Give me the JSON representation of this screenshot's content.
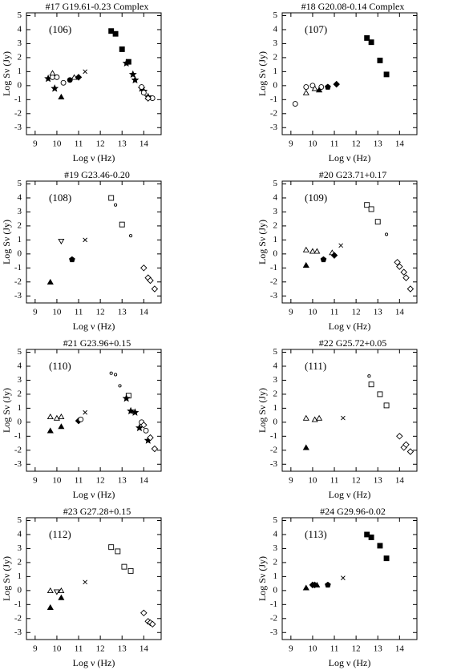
{
  "chart_data": [
    {
      "type": "scatter",
      "title": "#17   G19.61-0.23 Complex",
      "annotation": "(106)",
      "x_label": "Log ν (Hz)",
      "y_label": "Log Sν (Jy)",
      "xlim": [
        8.6,
        14.8
      ],
      "ylim": [
        -3.5,
        5.2
      ],
      "xticks": [
        9,
        10,
        11,
        12,
        13,
        14
      ],
      "yticks": [
        -3,
        -2,
        -1,
        0,
        1,
        2,
        3,
        4,
        5
      ],
      "series": [
        {
          "marker": "square",
          "x": [
            12.5,
            12.7,
            13.0,
            13.3
          ],
          "values": [
            3.9,
            3.7,
            2.6,
            1.7
          ]
        },
        {
          "marker": "star",
          "x": [
            9.6,
            9.9,
            13.2,
            13.5,
            13.6,
            13.9,
            14.0,
            14.2
          ],
          "values": [
            0.5,
            -0.2,
            1.6,
            0.8,
            0.4,
            -0.2,
            -0.4,
            -0.8
          ]
        },
        {
          "marker": "circle-open",
          "x": [
            9.8,
            10.0,
            10.3,
            13.9,
            14.0,
            14.4
          ],
          "values": [
            0.6,
            0.6,
            0.2,
            -0.1,
            -0.5,
            -0.9
          ]
        },
        {
          "marker": "triangle-open",
          "x": [
            9.8,
            10.8
          ],
          "values": [
            0.9,
            0.6
          ]
        },
        {
          "marker": "triangle",
          "x": [
            10.2
          ],
          "values": [
            -0.8
          ]
        },
        {
          "marker": "circle",
          "x": [
            10.6
          ],
          "values": [
            0.4
          ]
        },
        {
          "marker": "diamond",
          "x": [
            11.0
          ],
          "values": [
            0.6
          ]
        },
        {
          "marker": "cross",
          "x": [
            11.3
          ],
          "values": [
            1.0
          ]
        },
        {
          "marker": "diamond-open",
          "x": [
            14.2
          ],
          "values": [
            -0.9
          ]
        }
      ]
    },
    {
      "type": "scatter",
      "title": "#18   G20.08-0.14 Complex",
      "annotation": "(107)",
      "x_label": "Log ν (Hz)",
      "y_label": "Log Sν (Jy)",
      "xlim": [
        8.6,
        14.8
      ],
      "ylim": [
        -3.5,
        5.2
      ],
      "xticks": [
        9,
        10,
        11,
        12,
        13,
        14
      ],
      "yticks": [
        -3,
        -2,
        -1,
        0,
        1,
        2,
        3,
        4,
        5
      ],
      "series": [
        {
          "marker": "square",
          "x": [
            12.5,
            12.7,
            13.1,
            13.4
          ],
          "values": [
            3.4,
            3.1,
            1.8,
            0.8
          ]
        },
        {
          "marker": "circle-open",
          "x": [
            9.2,
            9.7,
            10.0,
            10.4
          ],
          "values": [
            -1.3,
            -0.1,
            0.0,
            -0.1
          ]
        },
        {
          "marker": "triangle-open",
          "x": [
            9.7,
            10.1
          ],
          "values": [
            -0.5,
            -0.2
          ]
        },
        {
          "marker": "triangle",
          "x": [
            10.3
          ],
          "values": [
            -0.3
          ]
        },
        {
          "marker": "pentagon",
          "x": [
            10.7
          ],
          "values": [
            -0.1
          ]
        },
        {
          "marker": "diamond",
          "x": [
            11.1
          ],
          "values": [
            0.1
          ]
        }
      ]
    },
    {
      "type": "scatter",
      "title": "#19   G23.46-0.20",
      "annotation": "(108)",
      "x_label": "Log ν (Hz)",
      "y_label": "Log Sν (Jy)",
      "xlim": [
        8.6,
        14.8
      ],
      "ylim": [
        -3.5,
        5.2
      ],
      "xticks": [
        9,
        10,
        11,
        12,
        13,
        14
      ],
      "yticks": [
        -3,
        -2,
        -1,
        0,
        1,
        2,
        3,
        4,
        5
      ],
      "series": [
        {
          "marker": "triangle",
          "x": [
            9.7
          ],
          "values": [
            -2.0
          ]
        },
        {
          "marker": "triangle-down-open",
          "x": [
            10.2
          ],
          "values": [
            0.9
          ]
        },
        {
          "marker": "pentagon",
          "x": [
            10.7
          ],
          "values": [
            -0.4
          ]
        },
        {
          "marker": "cross",
          "x": [
            11.3
          ],
          "values": [
            1.0
          ]
        },
        {
          "marker": "square-open",
          "x": [
            12.5,
            13.0
          ],
          "values": [
            4.0,
            2.1
          ]
        },
        {
          "marker": "dot-open",
          "x": [
            12.7,
            13.4
          ],
          "values": [
            3.5,
            1.3
          ]
        },
        {
          "marker": "diamond-open",
          "x": [
            14.0,
            14.2,
            14.3,
            14.5
          ],
          "values": [
            -1.0,
            -1.7,
            -1.9,
            -2.5
          ]
        }
      ]
    },
    {
      "type": "scatter",
      "title": "#20   G23.71+0.17",
      "annotation": "(109)",
      "x_label": "Log ν (Hz)",
      "y_label": "Log Sν (Jy)",
      "xlim": [
        8.6,
        14.8
      ],
      "ylim": [
        -3.5,
        5.2
      ],
      "xticks": [
        9,
        10,
        11,
        12,
        13,
        14
      ],
      "yticks": [
        -3,
        -2,
        -1,
        0,
        1,
        2,
        3,
        4,
        5
      ],
      "series": [
        {
          "marker": "triangle-open",
          "x": [
            9.7,
            10.0,
            10.2,
            10.9
          ],
          "values": [
            0.3,
            0.2,
            0.2,
            0.1
          ]
        },
        {
          "marker": "triangle",
          "x": [
            9.7
          ],
          "values": [
            -0.8
          ]
        },
        {
          "marker": "pentagon",
          "x": [
            10.5
          ],
          "values": [
            -0.4
          ]
        },
        {
          "marker": "diamond",
          "x": [
            11.0
          ],
          "values": [
            -0.1
          ]
        },
        {
          "marker": "cross",
          "x": [
            11.3
          ],
          "values": [
            0.6
          ]
        },
        {
          "marker": "square-open",
          "x": [
            12.5,
            12.7,
            13.0
          ],
          "values": [
            3.5,
            3.2,
            2.3
          ]
        },
        {
          "marker": "dot-open",
          "x": [
            13.4
          ],
          "values": [
            1.4
          ]
        },
        {
          "marker": "diamond-open",
          "x": [
            13.9,
            14.0,
            14.2,
            14.3,
            14.5
          ],
          "values": [
            -0.6,
            -0.9,
            -1.3,
            -1.7,
            -2.5
          ]
        }
      ]
    },
    {
      "type": "scatter",
      "title": "#21   G23.96+0.15",
      "annotation": "(110)",
      "x_label": "Log ν (Hz)",
      "y_label": "Log Sν (Jy)",
      "xlim": [
        8.6,
        14.8
      ],
      "ylim": [
        -3.5,
        5.2
      ],
      "xticks": [
        9,
        10,
        11,
        12,
        13,
        14
      ],
      "yticks": [
        -3,
        -2,
        -1,
        0,
        1,
        2,
        3,
        4,
        5
      ],
      "series": [
        {
          "marker": "triangle-open",
          "x": [
            9.7,
            10.0,
            10.2
          ],
          "values": [
            0.4,
            0.3,
            0.4
          ]
        },
        {
          "marker": "triangle",
          "x": [
            9.7,
            10.2
          ],
          "values": [
            -0.6,
            -0.3
          ]
        },
        {
          "marker": "diamond",
          "x": [
            11.0
          ],
          "values": [
            0.1
          ]
        },
        {
          "marker": "circle-open",
          "x": [
            11.1,
            13.9,
            14.1
          ],
          "values": [
            0.2,
            0.0,
            -0.6
          ]
        },
        {
          "marker": "cross",
          "x": [
            11.3
          ],
          "values": [
            0.7
          ]
        },
        {
          "marker": "dot-open",
          "x": [
            12.5,
            12.7,
            12.9
          ],
          "values": [
            3.5,
            3.4,
            2.6
          ]
        },
        {
          "marker": "square-open",
          "x": [
            13.3
          ],
          "values": [
            1.9
          ]
        },
        {
          "marker": "star",
          "x": [
            13.2,
            13.4,
            13.6,
            13.8,
            14.2
          ],
          "values": [
            1.7,
            0.8,
            0.7,
            -0.4,
            -1.3
          ]
        },
        {
          "marker": "diamond-open",
          "x": [
            14.0,
            14.3,
            14.5
          ],
          "values": [
            -0.2,
            -1.1,
            -1.9
          ]
        }
      ]
    },
    {
      "type": "scatter",
      "title": "#22   G25.72+0.05",
      "annotation": "(111)",
      "x_label": "Log ν (Hz)",
      "y_label": "Log Sν (Jy)",
      "xlim": [
        8.6,
        14.8
      ],
      "ylim": [
        -3.5,
        5.2
      ],
      "xticks": [
        9,
        10,
        11,
        12,
        13,
        14
      ],
      "yticks": [
        -3,
        -2,
        -1,
        0,
        1,
        2,
        3,
        4,
        5
      ],
      "series": [
        {
          "marker": "triangle-open",
          "x": [
            9.7,
            10.1,
            10.3
          ],
          "values": [
            0.3,
            0.2,
            0.3
          ]
        },
        {
          "marker": "triangle",
          "x": [
            9.7
          ],
          "values": [
            -1.8
          ]
        },
        {
          "marker": "cross",
          "x": [
            11.4
          ],
          "values": [
            0.3
          ]
        },
        {
          "marker": "dot-open",
          "x": [
            12.6
          ],
          "values": [
            3.3
          ]
        },
        {
          "marker": "square-open",
          "x": [
            12.7,
            13.1,
            13.4
          ],
          "values": [
            2.7,
            2.0,
            1.2
          ]
        },
        {
          "marker": "diamond-open",
          "x": [
            14.0,
            14.2,
            14.3,
            14.5
          ],
          "values": [
            -1.0,
            -1.8,
            -1.6,
            -2.1
          ]
        }
      ]
    },
    {
      "type": "scatter",
      "title": "#23   G27.28+0.15",
      "annotation": "(112)",
      "x_label": "Log ν (Hz)",
      "y_label": "Log Sν (Jy)",
      "xlim": [
        8.6,
        14.8
      ],
      "ylim": [
        -3.5,
        5.2
      ],
      "xticks": [
        9,
        10,
        11,
        12,
        13,
        14
      ],
      "yticks": [
        -3,
        -2,
        -1,
        0,
        1,
        2,
        3,
        4,
        5
      ],
      "series": [
        {
          "marker": "triangle-open",
          "x": [
            9.7,
            10.2
          ],
          "values": [
            0.0,
            0.0
          ]
        },
        {
          "marker": "triangle-down-open",
          "x": [
            10.0
          ],
          "values": [
            -0.1
          ]
        },
        {
          "marker": "triangle",
          "x": [
            9.7,
            10.2
          ],
          "values": [
            -1.2,
            -0.5
          ]
        },
        {
          "marker": "cross",
          "x": [
            11.3
          ],
          "values": [
            0.6
          ]
        },
        {
          "marker": "square-open",
          "x": [
            12.5,
            12.8,
            13.1,
            13.4
          ],
          "values": [
            3.1,
            2.8,
            1.7,
            1.4
          ]
        },
        {
          "marker": "diamond-open",
          "x": [
            14.0,
            14.2,
            14.3,
            14.4
          ],
          "values": [
            -1.6,
            -2.2,
            -2.3,
            -2.4
          ]
        }
      ]
    },
    {
      "type": "scatter",
      "title": "#24   G29.96-0.02",
      "annotation": "(113)",
      "x_label": "Log ν (Hz)",
      "y_label": "Log Sν (Jy)",
      "xlim": [
        8.6,
        14.8
      ],
      "ylim": [
        -3.5,
        5.2
      ],
      "xticks": [
        9,
        10,
        11,
        12,
        13,
        14
      ],
      "yticks": [
        -3,
        -2,
        -1,
        0,
        1,
        2,
        3,
        4,
        5
      ],
      "series": [
        {
          "marker": "triangle",
          "x": [
            9.7,
            10.2
          ],
          "values": [
            0.2,
            0.4
          ]
        },
        {
          "marker": "diamond",
          "x": [
            10.0,
            10.1
          ],
          "values": [
            0.4,
            0.4
          ]
        },
        {
          "marker": "pentagon",
          "x": [
            10.7
          ],
          "values": [
            0.4
          ]
        },
        {
          "marker": "cross",
          "x": [
            11.4
          ],
          "values": [
            0.9
          ]
        },
        {
          "marker": "square",
          "x": [
            12.5,
            12.7,
            13.1,
            13.4
          ],
          "values": [
            4.0,
            3.8,
            3.2,
            2.3
          ]
        }
      ]
    }
  ]
}
